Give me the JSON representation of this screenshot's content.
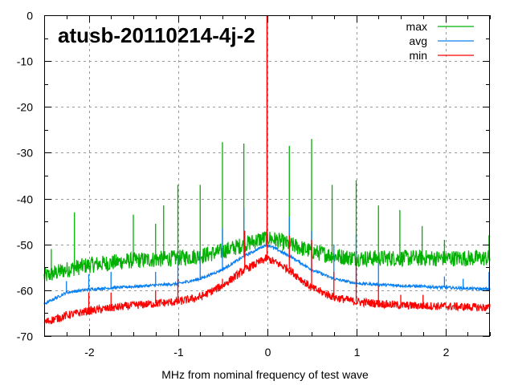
{
  "chart_data": {
    "type": "line",
    "title": "atusb-20110214-4j-2",
    "xlabel": "MHz from nominal frequency of test wave",
    "ylabel": "",
    "xlim": [
      -2.5,
      2.5
    ],
    "ylim": [
      -70,
      0
    ],
    "xticks": [
      -2,
      -1,
      0,
      1,
      2
    ],
    "xtick_labels": [
      "-2",
      "-1",
      "0",
      "1",
      "2"
    ],
    "yticks": [
      0,
      -10,
      -20,
      -30,
      -40,
      -50,
      -60,
      -70
    ],
    "ytick_labels": [
      "0",
      "-10",
      "-20",
      "-30",
      "-40",
      "-50",
      "-60",
      "-70"
    ],
    "grid": true,
    "legend_position": "top-right",
    "series": [
      {
        "name": "max",
        "color": "#00b000",
        "noise_db": 1.8,
        "x": [
          -2.5,
          -2.25,
          -2.0,
          -1.5,
          -1.0,
          -0.75,
          -0.5,
          -0.25,
          -0.1,
          0,
          0.1,
          0.25,
          0.5,
          0.75,
          1.0,
          1.5,
          2.0,
          2.5
        ],
        "y": [
          -57,
          -55.5,
          -54.5,
          -53.5,
          -53,
          -52.5,
          -51.5,
          -50,
          -49,
          -48.5,
          -49,
          -50,
          -51.5,
          -52.5,
          -53,
          -53,
          -53,
          -53
        ],
        "spikes": [
          {
            "x": -2.42,
            "y": -51
          },
          {
            "x": -2.16,
            "y": -43
          },
          {
            "x": -1.5,
            "y": -43.5
          },
          {
            "x": -1.25,
            "y": -45.5
          },
          {
            "x": -1.16,
            "y": -41.5
          },
          {
            "x": -1.0,
            "y": -37
          },
          {
            "x": -0.75,
            "y": -37
          },
          {
            "x": -0.5,
            "y": -27.7
          },
          {
            "x": -0.26,
            "y": -28
          },
          {
            "x": 0,
            "y": 0
          },
          {
            "x": 0.25,
            "y": -28.5
          },
          {
            "x": 0.5,
            "y": -27
          },
          {
            "x": 0.73,
            "y": -37
          },
          {
            "x": 1.0,
            "y": -36
          },
          {
            "x": 1.25,
            "y": -41.5
          },
          {
            "x": 1.49,
            "y": -42.5
          },
          {
            "x": 1.74,
            "y": -46
          },
          {
            "x": 1.99,
            "y": -49
          },
          {
            "x": 2.49,
            "y": -48
          }
        ]
      },
      {
        "name": "avg",
        "color": "#0a7ff0",
        "noise_db": 0.3,
        "x": [
          -2.5,
          -2.25,
          -2.0,
          -1.5,
          -1.0,
          -0.75,
          -0.5,
          -0.25,
          -0.1,
          0,
          0.1,
          0.25,
          0.5,
          0.75,
          1.0,
          1.5,
          2.0,
          2.5
        ],
        "y": [
          -63,
          -60.5,
          -59.8,
          -59.2,
          -58.6,
          -57.5,
          -55.5,
          -52.5,
          -51,
          -50,
          -51,
          -52.5,
          -55.5,
          -57.5,
          -58.5,
          -59,
          -59.4,
          -59.8
        ],
        "spikes": [
          {
            "x": -2.25,
            "y": -58
          },
          {
            "x": -2.0,
            "y": -56.5
          },
          {
            "x": -1.75,
            "y": -56
          },
          {
            "x": -1.25,
            "y": -56
          },
          {
            "x": -1.0,
            "y": -52.5
          },
          {
            "x": -0.75,
            "y": -51.5
          },
          {
            "x": -0.5,
            "y": -46.5
          },
          {
            "x": -0.26,
            "y": -42
          },
          {
            "x": 0,
            "y": 0
          },
          {
            "x": 0.25,
            "y": -44
          },
          {
            "x": 0.5,
            "y": -47
          },
          {
            "x": 0.75,
            "y": -50
          },
          {
            "x": 1.0,
            "y": -48
          },
          {
            "x": 1.25,
            "y": -54
          },
          {
            "x": 1.99,
            "y": -57
          },
          {
            "x": 2.2,
            "y": -57.5
          },
          {
            "x": 2.49,
            "y": -56
          }
        ]
      },
      {
        "name": "min",
        "color": "#ff0000",
        "noise_db": 0.9,
        "x": [
          -2.5,
          -2.25,
          -2.0,
          -1.5,
          -1.0,
          -0.75,
          -0.5,
          -0.25,
          -0.1,
          0,
          0.1,
          0.25,
          0.5,
          0.75,
          1.0,
          1.5,
          2.0,
          2.5
        ],
        "y": [
          -67,
          -65.5,
          -64.5,
          -63.3,
          -62.5,
          -61.5,
          -59,
          -55.5,
          -54,
          -53,
          -54,
          -55.5,
          -59.5,
          -61.5,
          -62.5,
          -63.3,
          -63.5,
          -63.8
        ],
        "spikes": [
          {
            "x": -2.0,
            "y": -60.5
          },
          {
            "x": -1.75,
            "y": -60.5
          },
          {
            "x": -1.25,
            "y": -60
          },
          {
            "x": -1.0,
            "y": -57.5
          },
          {
            "x": -0.5,
            "y": -57.5
          },
          {
            "x": -0.25,
            "y": -47
          },
          {
            "x": 0,
            "y": 0
          },
          {
            "x": 0.25,
            "y": -48
          },
          {
            "x": 0.5,
            "y": -49
          },
          {
            "x": 0.75,
            "y": -56
          },
          {
            "x": 1.0,
            "y": -53
          },
          {
            "x": 1.25,
            "y": -59
          },
          {
            "x": 1.5,
            "y": -61
          },
          {
            "x": 1.75,
            "y": -61
          }
        ]
      }
    ]
  }
}
